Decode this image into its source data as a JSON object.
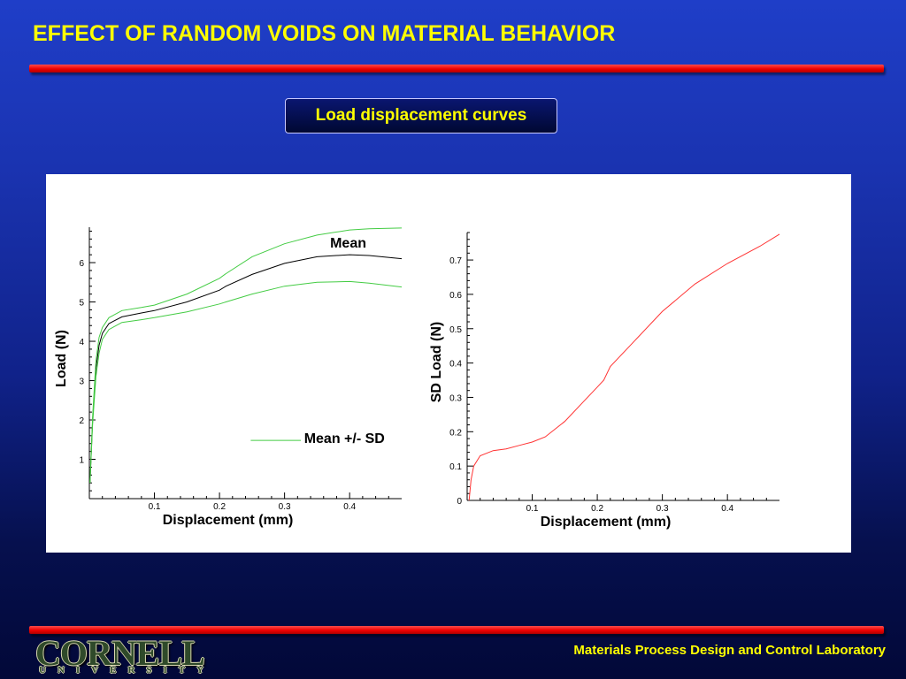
{
  "slide": {
    "title": "EFFECT OF RANDOM VOIDS ON MATERIAL BEHAVIOR",
    "subtitle": "Load displacement curves",
    "footer_lab": "Materials Process Design and Control Laboratory",
    "logo_text": "CORNELL",
    "logo_sub": "UNIVERSITY",
    "colors": {
      "title": "#ffff00",
      "bar": "#ee0000",
      "background_top": "#1f3ec8",
      "background_bottom": "#020838"
    }
  },
  "chart_data": [
    {
      "type": "line",
      "title": "",
      "xlabel": "Displacement (mm)",
      "ylabel": "Load (N)",
      "xlim": [
        0,
        0.48
      ],
      "ylim": [
        0,
        6.9
      ],
      "x_ticks": [
        0.1,
        0.2,
        0.3,
        0.4
      ],
      "y_ticks": [
        1,
        2,
        3,
        4,
        5,
        6
      ],
      "annotations": [
        "Mean",
        "Mean +/- SD"
      ],
      "series": [
        {
          "name": "Mean",
          "color": "#000000",
          "x": [
            0.001,
            0.005,
            0.01,
            0.015,
            0.02,
            0.03,
            0.05,
            0.08,
            0.1,
            0.15,
            0.2,
            0.21,
            0.25,
            0.3,
            0.35,
            0.4,
            0.43,
            0.48
          ],
          "y": [
            0.4,
            2.0,
            3.3,
            3.9,
            4.2,
            4.45,
            4.62,
            4.72,
            4.78,
            5.0,
            5.3,
            5.4,
            5.7,
            5.98,
            6.15,
            6.2,
            6.18,
            6.1
          ]
        },
        {
          "name": "Mean + SD",
          "color": "#44cc44",
          "x": [
            0.001,
            0.005,
            0.01,
            0.015,
            0.02,
            0.03,
            0.05,
            0.08,
            0.1,
            0.15,
            0.2,
            0.21,
            0.25,
            0.3,
            0.35,
            0.4,
            0.43,
            0.48
          ],
          "y": [
            0.4,
            2.1,
            3.5,
            4.1,
            4.35,
            4.6,
            4.78,
            4.86,
            4.92,
            5.2,
            5.6,
            5.72,
            6.15,
            6.48,
            6.7,
            6.83,
            6.86,
            6.88
          ]
        },
        {
          "name": "Mean - SD",
          "color": "#44cc44",
          "x": [
            0.001,
            0.005,
            0.01,
            0.015,
            0.02,
            0.03,
            0.05,
            0.08,
            0.1,
            0.15,
            0.2,
            0.21,
            0.25,
            0.3,
            0.35,
            0.4,
            0.43,
            0.48
          ],
          "y": [
            0.4,
            1.9,
            3.1,
            3.7,
            4.05,
            4.3,
            4.48,
            4.55,
            4.6,
            4.75,
            4.95,
            5.0,
            5.2,
            5.4,
            5.5,
            5.52,
            5.48,
            5.38
          ]
        }
      ]
    },
    {
      "type": "line",
      "title": "",
      "xlabel": "Displacement (mm)",
      "ylabel": "SD Load (N)",
      "xlim": [
        0,
        0.48
      ],
      "ylim": [
        0,
        0.78
      ],
      "x_ticks": [
        0.1,
        0.2,
        0.3,
        0.4
      ],
      "y_ticks": [
        0,
        0.1,
        0.2,
        0.3,
        0.4,
        0.5,
        0.6,
        0.7
      ],
      "series": [
        {
          "name": "SD",
          "color": "#ff3333",
          "x": [
            0.003,
            0.006,
            0.01,
            0.02,
            0.04,
            0.06,
            0.08,
            0.1,
            0.12,
            0.15,
            0.18,
            0.2,
            0.21,
            0.22,
            0.25,
            0.3,
            0.35,
            0.4,
            0.45,
            0.48
          ],
          "y": [
            0.0,
            0.06,
            0.1,
            0.13,
            0.145,
            0.15,
            0.16,
            0.17,
            0.185,
            0.23,
            0.29,
            0.33,
            0.35,
            0.39,
            0.45,
            0.55,
            0.63,
            0.69,
            0.74,
            0.775
          ]
        }
      ]
    }
  ]
}
